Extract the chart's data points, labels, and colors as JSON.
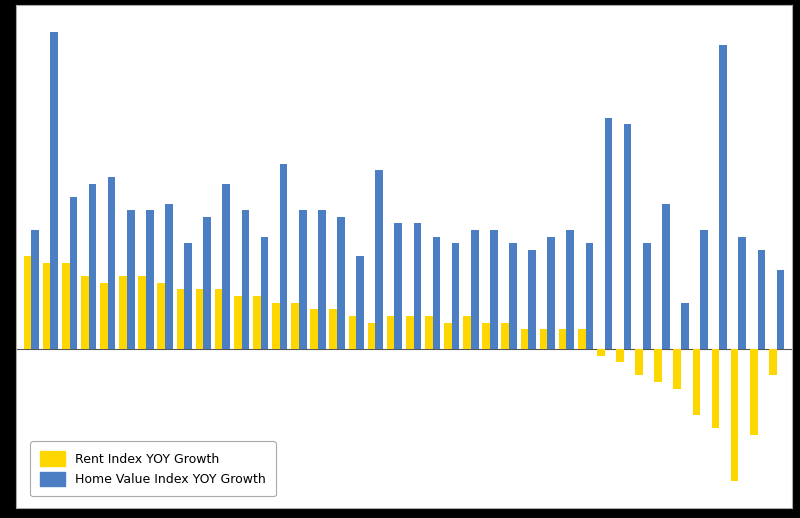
{
  "rent_growth": [
    7.0,
    6.5,
    6.5,
    5.5,
    5.0,
    5.5,
    5.5,
    5.0,
    4.5,
    4.5,
    4.5,
    4.0,
    4.0,
    3.5,
    3.5,
    3.0,
    3.0,
    2.5,
    2.0,
    2.5,
    2.5,
    2.5,
    2.0,
    2.5,
    2.0,
    2.0,
    1.5,
    1.5,
    1.5,
    1.5,
    -0.5,
    -1.0,
    -2.0,
    -2.5,
    -3.0,
    -5.0,
    -6.0,
    -10.0,
    -6.5,
    -2.0
  ],
  "home_value_growth": [
    9.0,
    24.0,
    11.5,
    12.5,
    13.0,
    10.5,
    10.5,
    11.0,
    8.0,
    10.0,
    12.5,
    10.5,
    8.5,
    14.0,
    10.5,
    10.5,
    10.0,
    7.0,
    13.5,
    9.5,
    9.5,
    8.5,
    8.0,
    9.0,
    9.0,
    8.0,
    7.5,
    8.5,
    9.0,
    8.0,
    17.5,
    17.0,
    8.0,
    11.0,
    3.5,
    9.0,
    23.0,
    8.5,
    7.5,
    6.0
  ],
  "rent_color": "#FFD700",
  "home_value_color": "#4C7EC4",
  "background_color": "#000000",
  "plot_bg_color": "#FFFFFF",
  "grid_color": "#CCCCCC",
  "legend_rent": "Rent Index YOY Growth",
  "legend_home": "Home Value Index YOY Growth",
  "bar_width": 0.4,
  "ylim_min": -12,
  "ylim_max": 26
}
